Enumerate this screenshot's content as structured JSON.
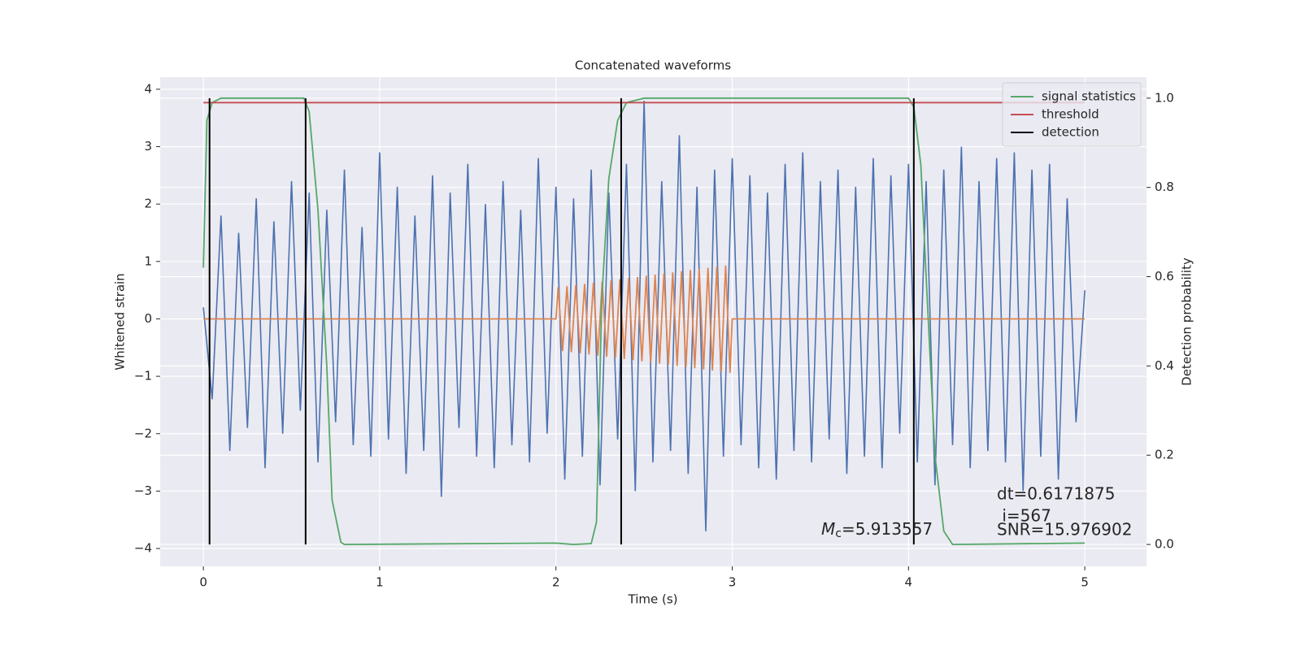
{
  "chart_data": {
    "type": "line",
    "title": "Concatenated waveforms",
    "xlabel": "Time (s)",
    "ylabel": "Whitened strain",
    "y2label": "Detection probability",
    "xlim": [
      -0.245,
      5.35
    ],
    "xticks": [
      0,
      1,
      2,
      3,
      4,
      5
    ],
    "ylim": [
      -4.31,
      4.21
    ],
    "yticks": [
      {
        "value": -4,
        "label": "−4"
      },
      {
        "value": -3,
        "label": "−3"
      },
      {
        "value": -2,
        "label": "−2"
      },
      {
        "value": -1,
        "label": "−1"
      },
      0,
      1,
      2,
      3,
      4
    ],
    "y2lim": [
      -0.049,
      1.047
    ],
    "y2ticks": [
      {
        "value": 0,
        "label": "0.0"
      },
      0.2,
      0.4,
      0.6,
      0.8,
      {
        "value": 1,
        "label": "1.0"
      }
    ],
    "grid": true,
    "legend": "upper right",
    "series": [
      {
        "color": "#4c72b0",
        "x": [
          0,
          0.05,
          0.1,
          0.15,
          0.2,
          0.25,
          0.3,
          0.35,
          0.4,
          0.45,
          0.5,
          0.55,
          0.6,
          0.65,
          0.7,
          0.75,
          0.8,
          0.85,
          0.9,
          0.95,
          1,
          1.05,
          1.1,
          1.15,
          1.2,
          1.25,
          1.3,
          1.35,
          1.4,
          1.45,
          1.5,
          1.55,
          1.6,
          1.65,
          1.7,
          1.75,
          1.8,
          1.85,
          1.9,
          1.95,
          2,
          2.05,
          2.1,
          2.15,
          2.2,
          2.25,
          2.3,
          2.35,
          2.4,
          2.45,
          2.5,
          2.55,
          2.6,
          2.65,
          2.7,
          2.75,
          2.8,
          2.85,
          2.9,
          2.95,
          3,
          3.05,
          3.1,
          3.15,
          3.2,
          3.25,
          3.3,
          3.35,
          3.4,
          3.45,
          3.5,
          3.55,
          3.6,
          3.65,
          3.7,
          3.75,
          3.8,
          3.85,
          3.9,
          3.95,
          4,
          4.05,
          4.1,
          4.15,
          4.2,
          4.25,
          4.3,
          4.35,
          4.4,
          4.45,
          4.5,
          4.55,
          4.6,
          4.65,
          4.7,
          4.75,
          4.8,
          4.85,
          4.9,
          4.95,
          5
        ],
        "values": [
          0.2,
          -1.4,
          1.8,
          -2.3,
          1.5,
          -1.9,
          2.1,
          -2.6,
          1.7,
          -2.0,
          2.4,
          -1.6,
          2.2,
          -2.5,
          1.9,
          -1.8,
          2.6,
          -2.2,
          1.6,
          -2.4,
          2.9,
          -2.1,
          2.3,
          -2.7,
          1.8,
          -2.3,
          2.5,
          -3.1,
          2.2,
          -1.9,
          2.7,
          -2.4,
          2.0,
          -2.6,
          2.4,
          -2.2,
          1.9,
          -2.5,
          2.8,
          -2.0,
          2.3,
          -2.8,
          2.1,
          -2.4,
          2.6,
          -2.9,
          2.2,
          -2.1,
          2.7,
          -3.0,
          3.8,
          -2.5,
          2.4,
          -2.3,
          3.2,
          -2.7,
          2.3,
          -3.7,
          2.6,
          -2.4,
          2.8,
          -2.2,
          2.5,
          -2.6,
          2.2,
          -2.8,
          2.7,
          -2.3,
          2.9,
          -2.5,
          2.4,
          -2.1,
          2.6,
          -2.7,
          2.3,
          -2.4,
          2.8,
          -2.6,
          2.5,
          -2.0,
          2.7,
          -2.5,
          2.4,
          -2.9,
          2.6,
          -2.2,
          3.0,
          -2.6,
          2.4,
          -2.3,
          2.8,
          -2.5,
          2.9,
          -3.0,
          2.6,
          -2.4,
          2.7,
          -2.8,
          2.1,
          -1.8,
          0.5
        ]
      },
      {
        "color": "#dd8452",
        "x": [
          0,
          2,
          2.0125,
          2.0375,
          2.0625,
          2.0875,
          2.1125,
          2.1375,
          2.1625,
          2.1875,
          2.2125,
          2.2375,
          2.2625,
          2.2875,
          2.3125,
          2.3375,
          2.3625,
          2.3875,
          2.4125,
          2.4375,
          2.4625,
          2.4875,
          2.5125,
          2.5375,
          2.5625,
          2.5875,
          2.6125,
          2.6375,
          2.6625,
          2.6875,
          2.7125,
          2.7375,
          2.7625,
          2.7875,
          2.8125,
          2.8375,
          2.8625,
          2.8875,
          2.9125,
          2.9375,
          2.9625,
          2.9875,
          3,
          5
        ],
        "values": [
          0,
          0,
          0.55,
          -0.56,
          0.57,
          -0.58,
          0.59,
          -0.6,
          0.61,
          -0.62,
          0.63,
          -0.64,
          0.65,
          -0.66,
          0.67,
          -0.68,
          0.69,
          -0.7,
          0.71,
          -0.72,
          0.73,
          -0.74,
          0.75,
          -0.76,
          0.77,
          -0.78,
          0.79,
          -0.8,
          0.81,
          -0.82,
          0.83,
          -0.84,
          0.85,
          -0.86,
          0.87,
          -0.88,
          0.89,
          -0.9,
          0.91,
          -0.92,
          0.93,
          -0.94,
          0,
          0
        ]
      },
      {
        "name": "signal statistics",
        "color": "#55a868",
        "axis": "y2",
        "x": [
          0,
          0.02,
          0.05,
          0.1,
          0.57,
          0.6,
          0.65,
          0.7,
          0.73,
          0.78,
          0.8,
          2.0,
          2.1,
          2.2,
          2.23,
          2.26,
          2.3,
          2.35,
          2.4,
          2.5,
          4.0,
          4.03,
          4.07,
          4.1,
          4.15,
          4.2,
          4.25,
          5
        ],
        "values": [
          0.62,
          0.95,
          0.99,
          1.0,
          1.0,
          0.97,
          0.75,
          0.4,
          0.1,
          0.005,
          0.0,
          0.003,
          0.0,
          0.002,
          0.05,
          0.55,
          0.82,
          0.95,
          0.99,
          1.0,
          1.0,
          0.98,
          0.85,
          0.6,
          0.2,
          0.03,
          0.0,
          0.003
        ]
      },
      {
        "name": "threshold",
        "color": "#c44e52",
        "axis": "y2",
        "x": [
          0,
          5
        ],
        "values": [
          0.99,
          0.99
        ]
      }
    ],
    "detections": {
      "name": "detection",
      "color": "#000000",
      "x": [
        0.035,
        0.58,
        2.37,
        4.03
      ]
    },
    "annotations": {
      "dt": "dt=0.6171875",
      "i": " i=567",
      "snr": "SNR=15.976902",
      "mc": {
        "symbol": "M",
        "subscript": "c",
        "text": "=5.913557"
      }
    }
  }
}
